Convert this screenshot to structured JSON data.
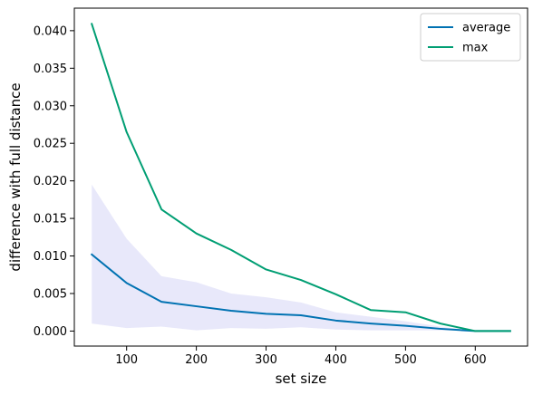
{
  "chart_data": {
    "type": "line",
    "xlabel": "set size",
    "ylabel": "difference with full distance",
    "xlim": [
      25,
      675
    ],
    "ylim": [
      -0.002,
      0.043
    ],
    "x_ticks": [
      100,
      200,
      300,
      400,
      500,
      600
    ],
    "y_ticks": [
      0.0,
      0.005,
      0.01,
      0.015,
      0.02,
      0.025,
      0.03,
      0.035,
      0.04
    ],
    "y_tick_labels": [
      "0.000",
      "0.005",
      "0.010",
      "0.015",
      "0.020",
      "0.025",
      "0.030",
      "0.035",
      "0.040"
    ],
    "grid": false,
    "legend_position": "top-right",
    "x": [
      50,
      100,
      150,
      200,
      250,
      300,
      350,
      400,
      450,
      500,
      550,
      600,
      650
    ],
    "series": [
      {
        "name": "average",
        "color": "#0072B2",
        "values": [
          0.0102,
          0.0064,
          0.0039,
          0.0033,
          0.0027,
          0.0023,
          0.0021,
          0.0014,
          0.001,
          0.0007,
          0.0003,
          0.0,
          0.0
        ]
      },
      {
        "name": "max",
        "color": "#009E73",
        "values": [
          0.0409,
          0.0265,
          0.0162,
          0.013,
          0.0108,
          0.0082,
          0.0068,
          0.0049,
          0.0028,
          0.0025,
          0.001,
          0.0,
          0.0
        ]
      }
    ],
    "band": {
      "series": "average",
      "color": "#E6E6FA",
      "lower": [
        0.001,
        0.0004,
        0.0006,
        0.0001,
        0.0004,
        0.0003,
        0.0005,
        0.0002,
        0.0001,
        0.0001,
        0.0001,
        0.0,
        0.0
      ],
      "upper": [
        0.0195,
        0.0123,
        0.0073,
        0.0065,
        0.005,
        0.0045,
        0.0038,
        0.0025,
        0.0019,
        0.0013,
        0.0006,
        0.0,
        0.0
      ]
    }
  }
}
